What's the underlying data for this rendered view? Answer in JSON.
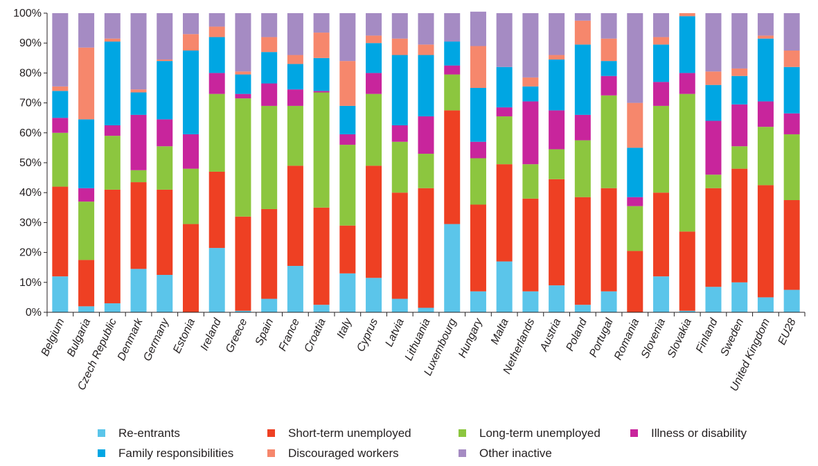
{
  "chart_data": {
    "type": "bar",
    "stacked": true,
    "percent": true,
    "categories": [
      "Belgium",
      "Bulgaria",
      "Czech Republic",
      "Denmark",
      "Germany",
      "Estonia",
      "Ireland",
      "Greece",
      "Spain",
      "France",
      "Croatia",
      "Italy",
      "Cyprus",
      "Latvia",
      "Lithuania",
      "Luxembourg",
      "Hungary",
      "Malta",
      "Netherlands",
      "Austria",
      "Poland",
      "Portugal",
      "Romania",
      "Slovenia",
      "Slovakia",
      "Finland",
      "Sweden",
      "United Kingdom",
      "EU28"
    ],
    "series": [
      {
        "name": "Re-entrants",
        "color": "#5bc5ea",
        "values": [
          12,
          2,
          3,
          14.5,
          12.5,
          0,
          21.5,
          0.5,
          4.5,
          15.5,
          2.5,
          13,
          11.5,
          4.5,
          1.5,
          29.5,
          7,
          17,
          7,
          9,
          2.5,
          7,
          0,
          12,
          0.5,
          8.5,
          10,
          5,
          7.5
        ]
      },
      {
        "name": "Short-term unemployed",
        "color": "#ee4023",
        "values": [
          30,
          15.5,
          38,
          29,
          28.5,
          29.5,
          25.5,
          31.5,
          30,
          33.5,
          32.5,
          16,
          37.5,
          35.5,
          40,
          38,
          29,
          32.5,
          31,
          35.5,
          36,
          34.5,
          20.5,
          28,
          26.5,
          33,
          38,
          37.5,
          30
        ]
      },
      {
        "name": "Long-term unemployed",
        "color": "#8cc63f",
        "values": [
          18,
          19.5,
          18,
          4,
          14.5,
          18.5,
          26,
          39.5,
          34.5,
          20,
          38.5,
          27,
          24,
          17,
          11.5,
          12,
          15.5,
          16,
          11.5,
          10,
          19,
          31,
          15,
          29,
          46,
          4.5,
          7.5,
          19.5,
          22
        ]
      },
      {
        "name": "Illness or disability",
        "color": "#c8259c",
        "values": [
          5,
          4.5,
          3.5,
          18.5,
          9,
          11.5,
          7,
          1.5,
          7.5,
          5.5,
          0.5,
          3.5,
          7,
          5.5,
          12.5,
          3,
          5.5,
          3,
          21,
          13,
          8.5,
          6.5,
          3,
          8,
          7,
          18,
          14,
          8.5,
          7
        ]
      },
      {
        "name": "Family responsibilities",
        "color": "#00a6e3",
        "values": [
          9,
          23,
          28,
          7.5,
          19.5,
          28,
          12,
          6.5,
          10.5,
          8.5,
          11,
          9.5,
          10,
          23.5,
          20.5,
          8,
          18,
          13.5,
          5,
          17,
          23.5,
          5,
          16.5,
          12.5,
          19,
          12,
          9.5,
          21,
          15.5
        ]
      },
      {
        "name": "Discouraged workers",
        "color": "#f6876c",
        "values": [
          1.5,
          24,
          1,
          1,
          0.5,
          5.5,
          3.5,
          1,
          5,
          3,
          8.5,
          15,
          2.5,
          5.5,
          3.5,
          0,
          14,
          0,
          3,
          1.5,
          8,
          7.5,
          15,
          2.5,
          1,
          4.5,
          2.5,
          1,
          5.5
        ]
      },
      {
        "name": "Other inactive",
        "color": "#a58bc3",
        "values": [
          24.5,
          11.5,
          8.5,
          25.5,
          15.5,
          7,
          4.5,
          19.5,
          8,
          14,
          6.5,
          16,
          7.5,
          8.5,
          10.5,
          9.5,
          11.5,
          18,
          21.5,
          14,
          2.5,
          8.5,
          30,
          8,
          0,
          19.5,
          18.5,
          7.5,
          12.5
        ]
      }
    ],
    "yticks": [
      "0%",
      "10%",
      "20%",
      "30%",
      "40%",
      "50%",
      "60%",
      "70%",
      "80%",
      "90%",
      "100%"
    ],
    "ylim": [
      0,
      100
    ],
    "grid": false,
    "legend_position": "bottom"
  }
}
